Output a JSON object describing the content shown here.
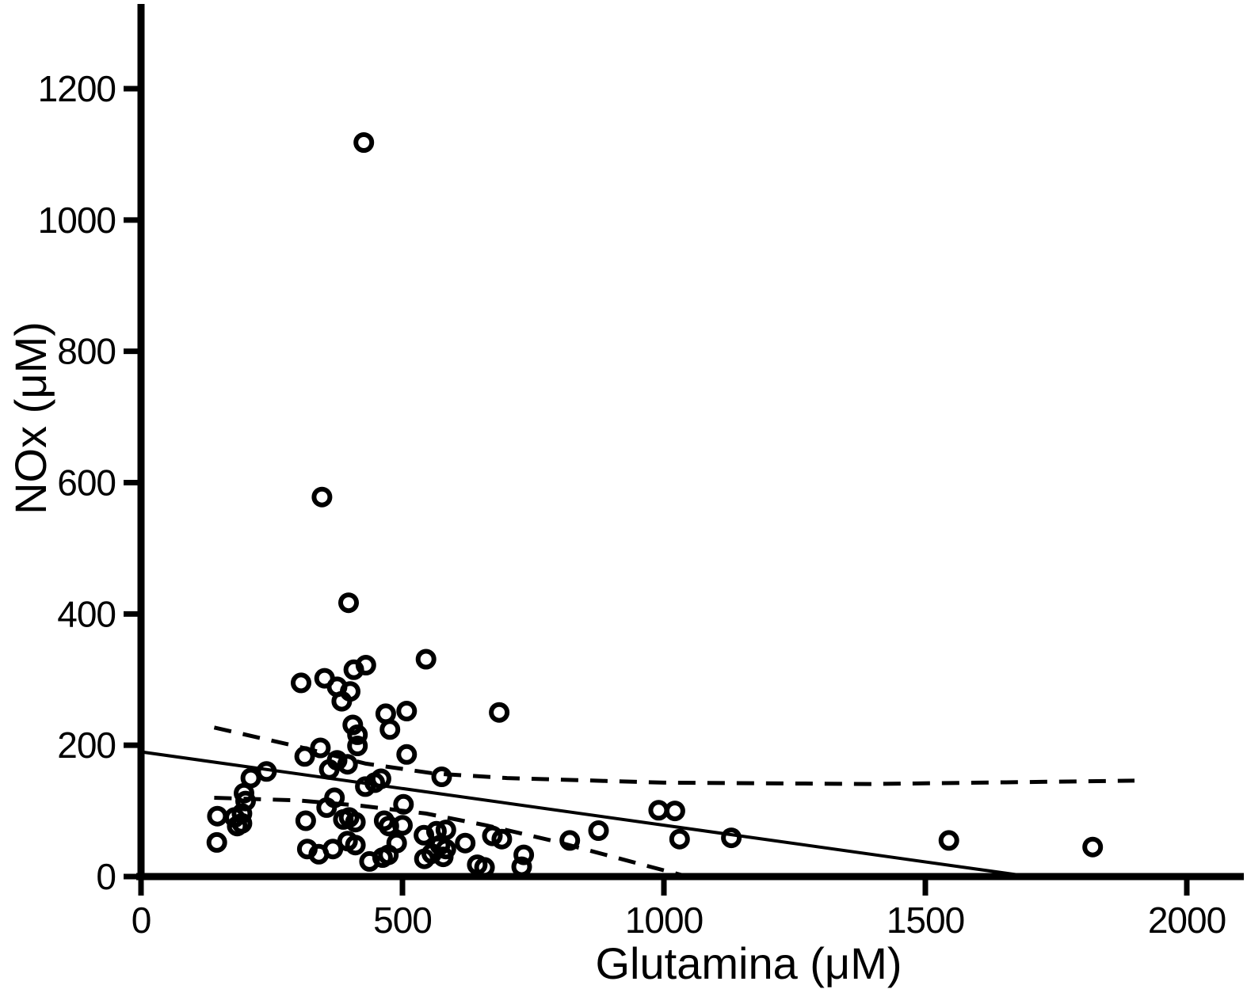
{
  "figure": {
    "background": "#ffffff",
    "ink_color": "#000000"
  },
  "chart_data": {
    "type": "scatter",
    "title": "",
    "xlabel": "Glutamina (μM)",
    "ylabel": "NOx (μM)",
    "xlim": [
      0,
      2100
    ],
    "ylim": [
      0,
      1330
    ],
    "x_ticks": [
      0,
      500,
      1000,
      1500,
      2000
    ],
    "y_ticks": [
      0,
      200,
      400,
      600,
      800,
      1000,
      1200
    ],
    "grid": false,
    "legend": "none",
    "marker": {
      "shape": "open-circle",
      "color": "#000000",
      "radius_px": 10,
      "stroke_px": 6
    },
    "points": [
      [
        145,
        52
      ],
      [
        146,
        92
      ],
      [
        179,
        90
      ],
      [
        184,
        77
      ],
      [
        193,
        96
      ],
      [
        193,
        81
      ],
      [
        197,
        127
      ],
      [
        200,
        115
      ],
      [
        210,
        150
      ],
      [
        240,
        160
      ],
      [
        306,
        295
      ],
      [
        313,
        183
      ],
      [
        315,
        85
      ],
      [
        318,
        42
      ],
      [
        340,
        34
      ],
      [
        343,
        196
      ],
      [
        346,
        578
      ],
      [
        351,
        302
      ],
      [
        355,
        105
      ],
      [
        360,
        163
      ],
      [
        367,
        42
      ],
      [
        370,
        120
      ],
      [
        375,
        289
      ],
      [
        375,
        177
      ],
      [
        384,
        267
      ],
      [
        387,
        87
      ],
      [
        395,
        171
      ],
      [
        395,
        54
      ],
      [
        397,
        417
      ],
      [
        398,
        90
      ],
      [
        400,
        282
      ],
      [
        405,
        231
      ],
      [
        407,
        315
      ],
      [
        410,
        83
      ],
      [
        410,
        48
      ],
      [
        414,
        199
      ],
      [
        414,
        216
      ],
      [
        426,
        1118
      ],
      [
        429,
        137
      ],
      [
        430,
        322
      ],
      [
        437,
        23
      ],
      [
        447,
        143
      ],
      [
        459,
        149
      ],
      [
        462,
        29
      ],
      [
        465,
        85
      ],
      [
        468,
        248
      ],
      [
        473,
        33
      ],
      [
        474,
        77
      ],
      [
        476,
        224
      ],
      [
        489,
        51
      ],
      [
        500,
        78
      ],
      [
        502,
        110
      ],
      [
        508,
        186
      ],
      [
        508,
        252
      ],
      [
        541,
        63
      ],
      [
        542,
        27
      ],
      [
        545,
        331
      ],
      [
        556,
        35
      ],
      [
        565,
        69
      ],
      [
        572,
        48
      ],
      [
        575,
        152
      ],
      [
        578,
        30
      ],
      [
        583,
        71
      ],
      [
        583,
        42
      ],
      [
        620,
        51
      ],
      [
        643,
        18
      ],
      [
        657,
        14
      ],
      [
        672,
        62
      ],
      [
        685,
        250
      ],
      [
        690,
        57
      ],
      [
        728,
        15
      ],
      [
        732,
        33
      ],
      [
        820,
        55
      ],
      [
        875,
        70
      ],
      [
        990,
        101
      ],
      [
        1021,
        100
      ],
      [
        1030,
        57
      ],
      [
        1129,
        59
      ],
      [
        1545,
        55
      ],
      [
        1820,
        45
      ]
    ],
    "regression_line": {
      "style": "solid",
      "points": [
        [
          0,
          190
        ],
        [
          1700,
          0
        ]
      ]
    },
    "confidence_band_upper": {
      "style": "dashed",
      "points": [
        [
          140,
          227
        ],
        [
          300,
          198
        ],
        [
          430,
          172
        ],
        [
          560,
          157
        ],
        [
          700,
          150
        ],
        [
          1000,
          143
        ],
        [
          1400,
          141
        ],
        [
          1900,
          146
        ]
      ]
    },
    "confidence_band_lower": {
      "style": "dashed",
      "points": [
        [
          140,
          120
        ],
        [
          300,
          116
        ],
        [
          420,
          108
        ],
        [
          545,
          96
        ],
        [
          660,
          78
        ],
        [
          790,
          54
        ],
        [
          950,
          20
        ],
        [
          1045,
          0
        ]
      ]
    }
  }
}
